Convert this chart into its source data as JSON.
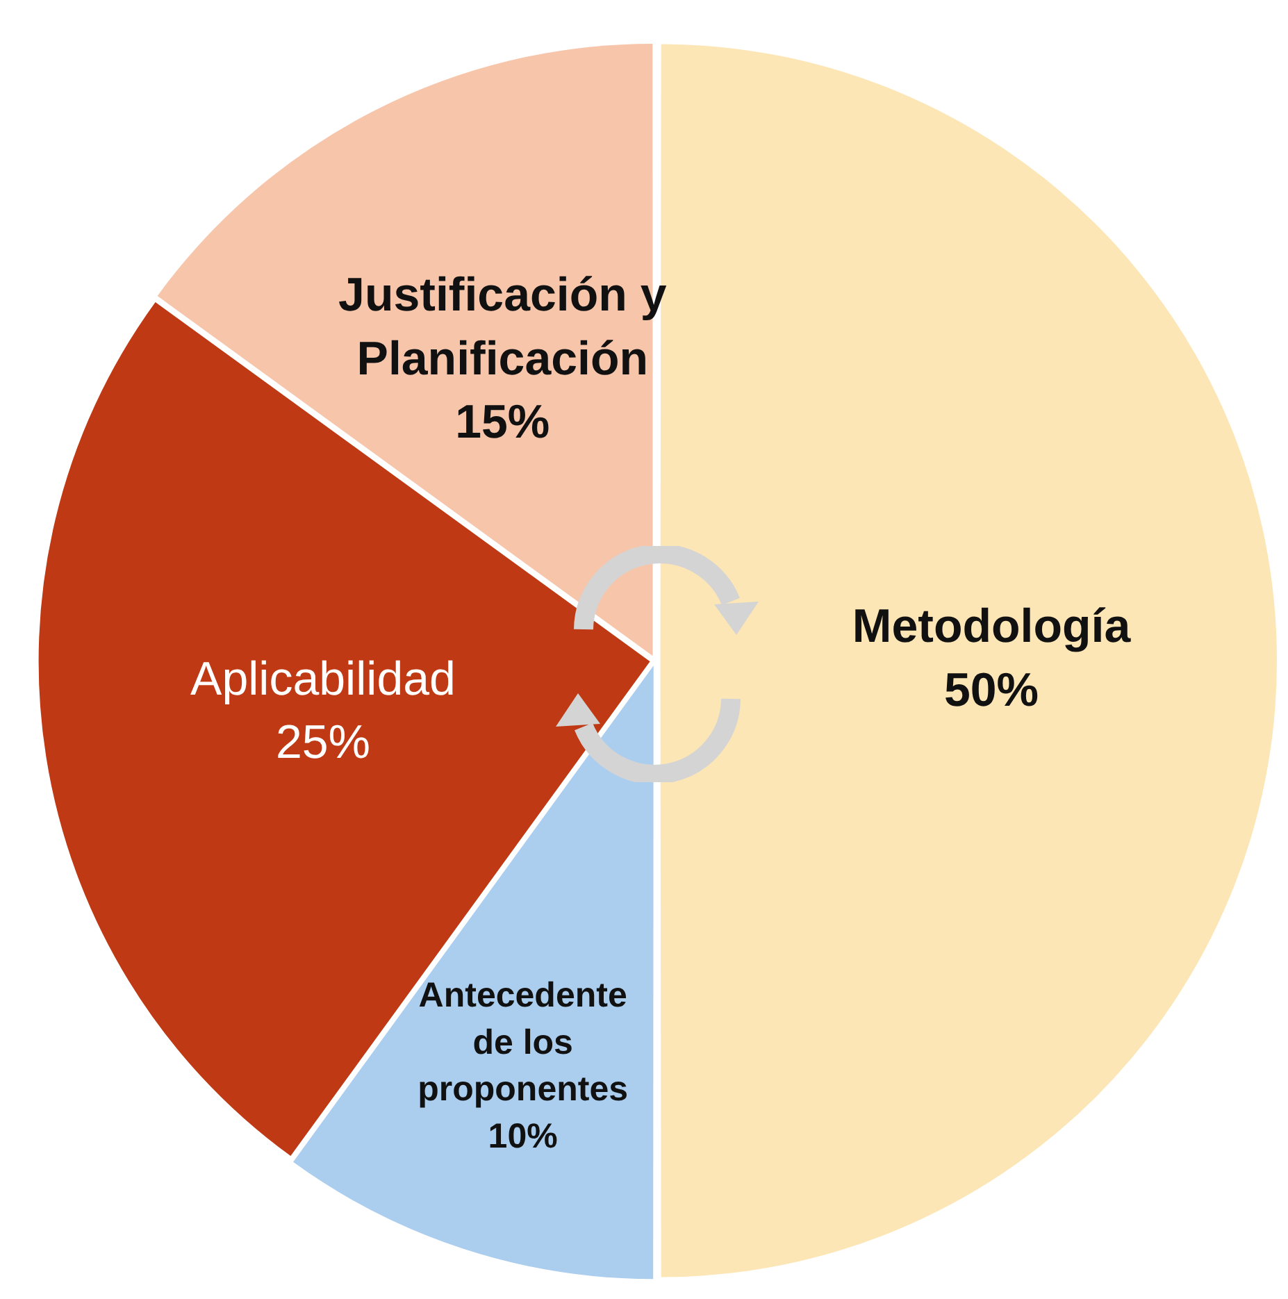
{
  "chart_data": {
    "type": "pie",
    "categories": [
      "Metodología",
      "Antecedente de los proponentes",
      "Aplicabilidad",
      "Justificación y Planificación"
    ],
    "values": [
      50,
      10,
      25,
      15
    ],
    "value_labels": [
      "50%",
      "10%",
      "25%",
      "15%"
    ],
    "colors": [
      "#fde6b5",
      "#abcdee",
      "#bf3a14",
      "#f7c5aa"
    ]
  }
}
